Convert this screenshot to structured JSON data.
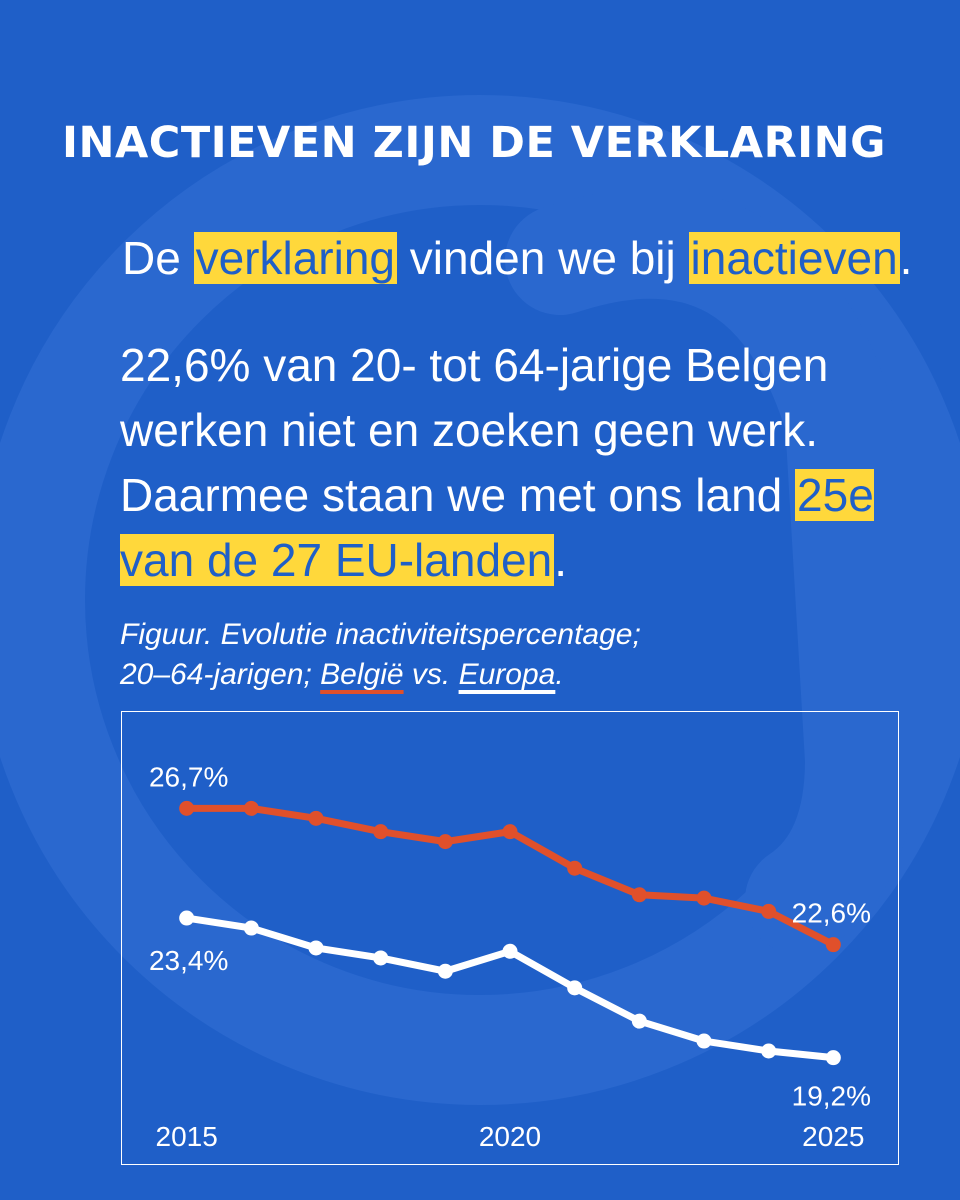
{
  "title": "INACTIEVEN ZIJN DE VERKLARING",
  "lead": {
    "p1": "De ",
    "h1": "verklaring",
    "p2": " vinden we bij ",
    "h2": "inactieven",
    "p3": "."
  },
  "body": {
    "text": "22,6% van 20- tot 64-jarige Belgen werken niet en zoeken geen werk. Daarmee staan we met ons land ",
    "highlight": "25e van de 27 EU-landen",
    "end": "."
  },
  "caption": {
    "line1": "Figuur. Evolutie inactiviteitspercentage;",
    "line2_prefix": "20–64-jarigen; ",
    "belgie": "België",
    "vs": " vs. ",
    "europa": "Europa",
    "end": "."
  },
  "colors": {
    "background": "#1f5fc8",
    "highlight": "#ffd83b",
    "belgie": "#e0502b",
    "europa": "#ffffff"
  },
  "chart_data": {
    "type": "line",
    "x": [
      2015,
      2016,
      2017,
      2018,
      2019,
      2020,
      2021,
      2022,
      2023,
      2024,
      2025
    ],
    "series": [
      {
        "name": "België",
        "color": "#e0502b",
        "values": [
          26.7,
          26.7,
          26.4,
          26.0,
          25.7,
          26.0,
          24.9,
          24.1,
          24.0,
          23.6,
          22.6
        ]
      },
      {
        "name": "Europa",
        "color": "#ffffff",
        "values": [
          23.4,
          23.1,
          22.5,
          22.2,
          21.8,
          22.4,
          21.3,
          20.3,
          19.7,
          19.4,
          19.2
        ]
      }
    ],
    "x_ticks": [
      "2015",
      "2020",
      "2025"
    ],
    "annotations": {
      "belgie_start": "26,7%",
      "belgie_end": "22,6%",
      "europa_start": "23,4%",
      "europa_end": "19,2%"
    },
    "ylim": [
      16.0,
      29.6
    ],
    "xlim": [
      2014.0,
      2026.0
    ],
    "grid": false,
    "legend": "none"
  }
}
